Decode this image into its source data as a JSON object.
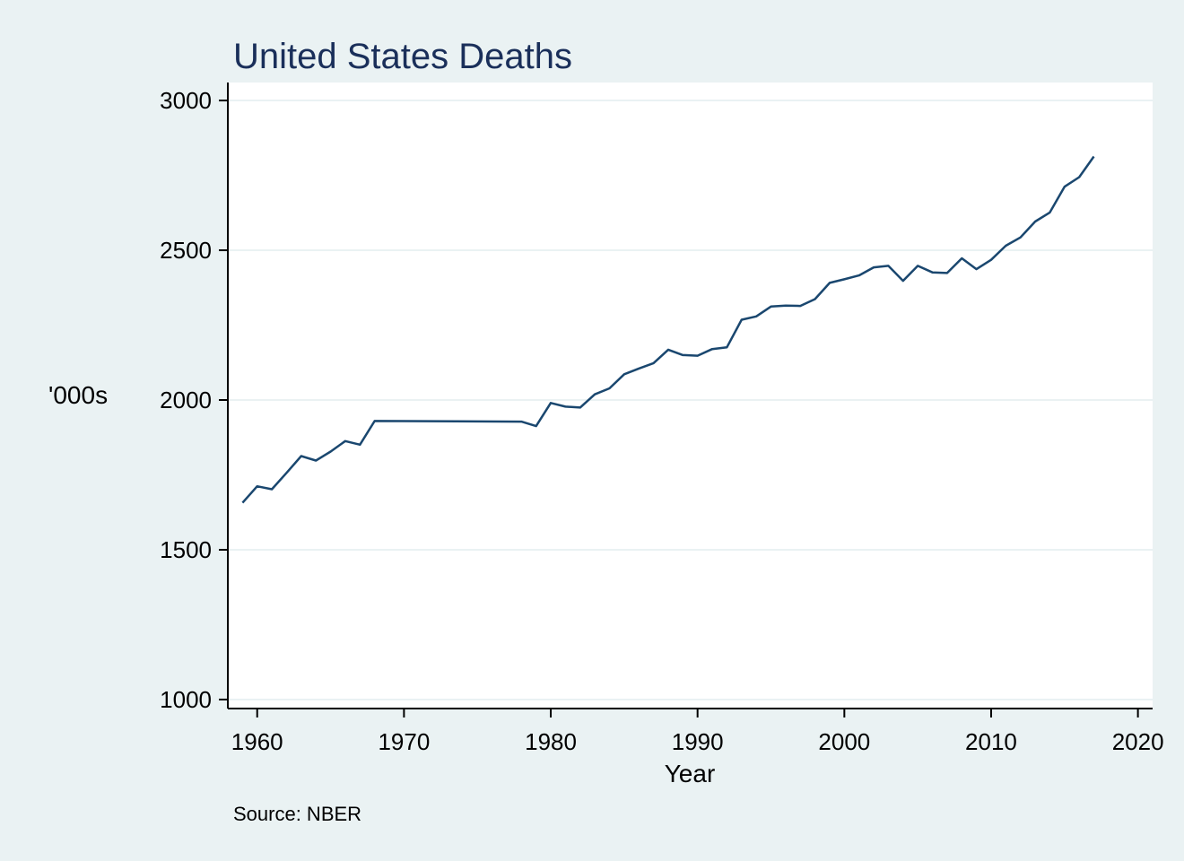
{
  "chart_data": {
    "type": "line",
    "title": "United States Deaths",
    "xlabel": "Year",
    "ylabel": "'000s",
    "note": "Source: NBER",
    "xlim": [
      1958,
      2021
    ],
    "ylim": [
      970,
      3060
    ],
    "x_ticks": [
      1960,
      1970,
      1980,
      1990,
      2000,
      2010,
      2020
    ],
    "y_ticks": [
      1000,
      1500,
      2000,
      2500,
      3000
    ],
    "grid": true,
    "colors": {
      "line": "#1a476f",
      "title": "#1a2f5a",
      "background": "#eaf2f3",
      "plot_bg": "#ffffff",
      "grid": "#eaf2f3"
    },
    "series": [
      {
        "x": [
          1959,
          1960,
          1961,
          1962,
          1963,
          1964,
          1965,
          1966,
          1967,
          1968,
          1978,
          1979,
          1980,
          1981,
          1982,
          1983,
          1984,
          1985,
          1986,
          1987,
          1988,
          1989,
          1990,
          1991,
          1992,
          1993,
          1994,
          1995,
          1996,
          1997,
          1998,
          1999,
          2000,
          2001,
          2002,
          2003,
          2004,
          2005,
          2006,
          2007,
          2008,
          2009,
          2010,
          2011,
          2012,
          2013,
          2014,
          2015,
          2016,
          2017
        ],
        "y": [
          1657,
          1712,
          1702,
          1757,
          1813,
          1798,
          1828,
          1863,
          1851,
          1930,
          1928,
          1913,
          1990,
          1978,
          1975,
          2019,
          2039,
          2086,
          2105,
          2123,
          2168,
          2150,
          2148,
          2170,
          2176,
          2268,
          2279,
          2312,
          2315,
          2314,
          2337,
          2391,
          2403,
          2416,
          2443,
          2448,
          2398,
          2448,
          2426,
          2424,
          2473,
          2437,
          2468,
          2515,
          2543,
          2596,
          2626,
          2712,
          2744,
          2813
        ]
      }
    ]
  }
}
